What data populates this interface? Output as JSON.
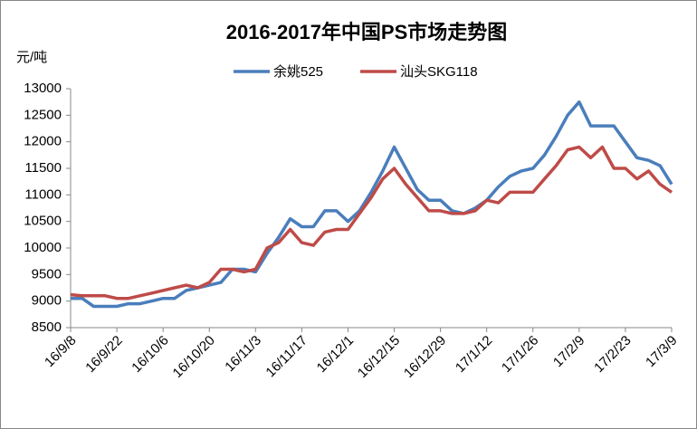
{
  "chart_data": {
    "type": "line",
    "title": "2016-2017年中国PS市场走势图",
    "y_label": "元/吨",
    "categories": [
      "16/9/8",
      null,
      null,
      null,
      "16/9/22",
      null,
      null,
      null,
      "16/10/6",
      null,
      null,
      null,
      "16/10/20",
      null,
      null,
      null,
      "16/11/3",
      null,
      null,
      null,
      "16/11/17",
      null,
      null,
      null,
      "16/12/1",
      null,
      null,
      null,
      "16/12/15",
      null,
      null,
      null,
      "16/12/29",
      null,
      null,
      null,
      "17/1/12",
      null,
      null,
      null,
      "17/1/26",
      null,
      null,
      null,
      "17/2/9",
      null,
      null,
      null,
      "17/2/23",
      null,
      null,
      null,
      "17/3/9"
    ],
    "series": [
      {
        "name": "余姚525",
        "color": "#4a7ebb",
        "values": [
          9050,
          9050,
          8900,
          8900,
          8900,
          8950,
          8950,
          9000,
          9050,
          9050,
          9200,
          9250,
          9300,
          9350,
          9600,
          9600,
          9550,
          9900,
          10200,
          10550,
          10400,
          10400,
          10700,
          10700,
          10500,
          10700,
          11050,
          11450,
          11900,
          11500,
          11100,
          10900,
          10900,
          10700,
          10650,
          10750,
          10900,
          11150,
          11350,
          11450,
          11500,
          11750,
          12100,
          12500,
          12750,
          12300,
          12300,
          12300,
          12000,
          11700,
          11650,
          11550,
          11200
        ]
      },
      {
        "name": "汕头SKG118",
        "color": "#be4b48",
        "values": [
          9120,
          9100,
          9100,
          9100,
          9050,
          9050,
          9100,
          9150,
          9200,
          9250,
          9300,
          9250,
          9350,
          9600,
          9600,
          9550,
          9600,
          10000,
          10100,
          10350,
          10100,
          10050,
          10300,
          10350,
          10350,
          10650,
          10950,
          11300,
          11500,
          11200,
          10950,
          10700,
          10700,
          10650,
          10650,
          10700,
          10900,
          10850,
          11050,
          11050,
          11050,
          11300,
          11550,
          11850,
          11900,
          11700,
          11900,
          11500,
          11500,
          11300,
          11450,
          11200,
          11050
        ]
      }
    ],
    "ylim": [
      8500,
      13000
    ],
    "yticks": [
      8500,
      9000,
      9500,
      10000,
      10500,
      11000,
      11500,
      12000,
      12500,
      13000
    ],
    "grid": false
  }
}
